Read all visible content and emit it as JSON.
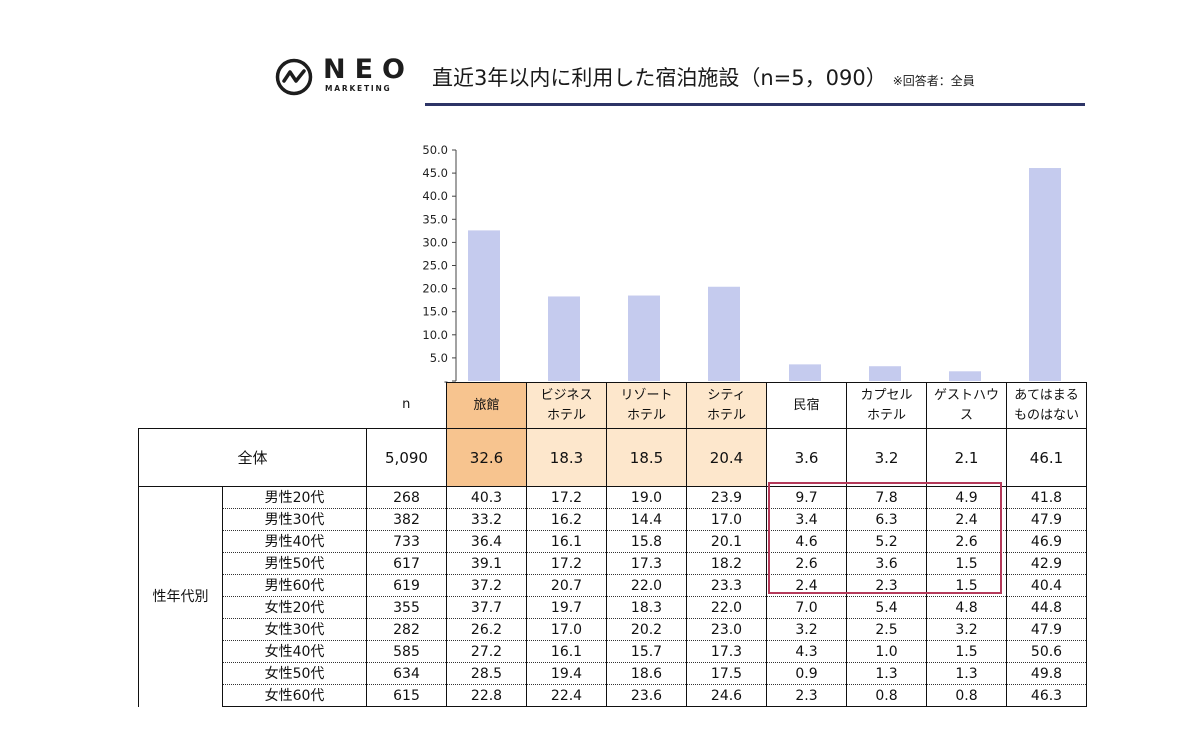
{
  "logo": {
    "word": "NEO",
    "sub": "MARKETING"
  },
  "title": {
    "main": "直近3年以内に利用した宿泊施設（n=5，090）",
    "note": "※回答者：全員"
  },
  "colors": {
    "bar": "#c5cbee",
    "header_highlight": "#f7c48f",
    "cell_highlight": "#fde7cc",
    "box": "#b43a5a",
    "rule": "#2d3466"
  },
  "chart_data": {
    "type": "bar",
    "categories": [
      "旅館",
      "ビジネスホテル",
      "リゾートホテル",
      "シティホテル",
      "民宿",
      "カプセルホテル",
      "ゲストハウス",
      "あてはまるものはない"
    ],
    "values": [
      32.6,
      18.3,
      18.5,
      20.4,
      3.6,
      3.2,
      2.1,
      46.1
    ],
    "yticks": [
      "50.0",
      "45.0",
      "40.0",
      "35.0",
      "30.0",
      "25.0",
      "20.0",
      "15.0",
      "10.0",
      "5.0",
      "-"
    ],
    "ylim": [
      0,
      50
    ],
    "grid": false,
    "legend": "none"
  },
  "table": {
    "n_label": "n",
    "headers": [
      [
        "旅館",
        ""
      ],
      [
        "ビジネス",
        "ホテル"
      ],
      [
        "リゾート",
        "ホテル"
      ],
      [
        "シティ",
        "ホテル"
      ],
      [
        "民宿",
        ""
      ],
      [
        "カプセル",
        "ホテル"
      ],
      [
        "ゲストハウ",
        "ス"
      ],
      [
        "あてはまる",
        "ものはない"
      ]
    ],
    "total": {
      "label": "全体",
      "n": "5,090",
      "values": [
        "32.6",
        "18.3",
        "18.5",
        "20.4",
        "3.6",
        "3.2",
        "2.1",
        "46.1"
      ]
    },
    "group_label": "性年代別",
    "rows": [
      {
        "label": "男性20代",
        "n": "268",
        "values": [
          "40.3",
          "17.2",
          "19.0",
          "23.9",
          "9.7",
          "7.8",
          "4.9",
          "41.8"
        ]
      },
      {
        "label": "男性30代",
        "n": "382",
        "values": [
          "33.2",
          "16.2",
          "14.4",
          "17.0",
          "3.4",
          "6.3",
          "2.4",
          "47.9"
        ]
      },
      {
        "label": "男性40代",
        "n": "733",
        "values": [
          "36.4",
          "16.1",
          "15.8",
          "20.1",
          "4.6",
          "5.2",
          "2.6",
          "46.9"
        ]
      },
      {
        "label": "男性50代",
        "n": "617",
        "values": [
          "39.1",
          "17.2",
          "17.3",
          "18.2",
          "2.6",
          "3.6",
          "1.5",
          "42.9"
        ]
      },
      {
        "label": "男性60代",
        "n": "619",
        "values": [
          "37.2",
          "20.7",
          "22.0",
          "23.3",
          "2.4",
          "2.3",
          "1.5",
          "40.4"
        ]
      },
      {
        "label": "女性20代",
        "n": "355",
        "values": [
          "37.7",
          "19.7",
          "18.3",
          "22.0",
          "7.0",
          "5.4",
          "4.8",
          "44.8"
        ]
      },
      {
        "label": "女性30代",
        "n": "282",
        "values": [
          "26.2",
          "17.0",
          "20.2",
          "23.0",
          "3.2",
          "2.5",
          "3.2",
          "47.9"
        ]
      },
      {
        "label": "女性40代",
        "n": "585",
        "values": [
          "27.2",
          "16.1",
          "15.7",
          "17.3",
          "4.3",
          "1.0",
          "1.5",
          "50.6"
        ]
      },
      {
        "label": "女性50代",
        "n": "634",
        "values": [
          "28.5",
          "19.4",
          "18.6",
          "17.5",
          "0.9",
          "1.3",
          "1.3",
          "49.8"
        ]
      },
      {
        "label": "女性60代",
        "n": "615",
        "values": [
          "22.8",
          "22.4",
          "23.6",
          "24.6",
          "2.3",
          "0.8",
          "0.8",
          "46.3"
        ]
      }
    ]
  }
}
